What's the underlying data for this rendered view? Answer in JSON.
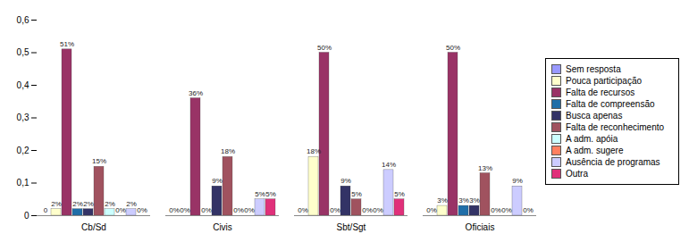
{
  "chart_data": {
    "type": "bar",
    "categories": [
      "Cb/Sd",
      "Civis",
      "Sbt/Sgt",
      "Oficiais"
    ],
    "ylim": [
      0,
      0.6
    ],
    "yticks": [
      0,
      {
        "value": 0.1,
        "label": "0,1"
      },
      {
        "value": 0.2,
        "label": "0,2"
      },
      {
        "value": 0.3,
        "label": "0,3"
      },
      {
        "value": 0.4,
        "label": "0,4"
      },
      {
        "value": 0.5,
        "label": "0,5"
      },
      {
        "value": 0.6,
        "label": "0,6"
      }
    ],
    "grid": false,
    "legend": "right",
    "data_labels": true,
    "series": [
      {
        "name": "Sem resposta",
        "color": "#9999ff",
        "values": [
          0,
          0,
          0,
          0
        ],
        "value_labels": [
          "0",
          "0%",
          "0%",
          "0%"
        ]
      },
      {
        "name": "Pouca participação",
        "color": "#ffffcc",
        "values": [
          0.02,
          0,
          0.18,
          0.03
        ],
        "value_labels": [
          "2%",
          "0%",
          "18%",
          "3%"
        ]
      },
      {
        "name": "Falta de recursos",
        "color": "#993366",
        "values": [
          0.51,
          0.36,
          0.5,
          0.5
        ],
        "value_labels": [
          "51%",
          "36%",
          "50%",
          "50%"
        ]
      },
      {
        "name": "Falta de compreensão",
        "color": "#1f6ea8",
        "values": [
          0.02,
          0,
          0,
          0.03
        ],
        "value_labels": [
          "2%",
          "0%",
          "0%",
          "3%"
        ]
      },
      {
        "name": "Busca apenas",
        "color": "#333366",
        "values": [
          0.02,
          0.09,
          0.09,
          0.03
        ],
        "value_labels": [
          "2%",
          "9%",
          "9%",
          "3%"
        ]
      },
      {
        "name": "Falta de reconhecimento",
        "color": "#a0525f",
        "values": [
          0.15,
          0.18,
          0.05,
          0.13
        ],
        "value_labels": [
          "15%",
          "18%",
          "5%",
          "13%"
        ]
      },
      {
        "name": "A adm. apóia",
        "color": "#ccffff",
        "values": [
          0.02,
          0,
          0,
          0
        ],
        "value_labels": [
          "2%",
          "0%",
          "0%",
          "0%"
        ]
      },
      {
        "name": "A adm. sugere",
        "color": "#ff8060",
        "values": [
          0,
          0,
          0,
          0
        ],
        "value_labels": [
          "0%",
          "0%",
          "0%",
          "0%"
        ]
      },
      {
        "name": "Ausência de programas",
        "color": "#ccccff",
        "values": [
          0.02,
          0.05,
          0.14,
          0.09
        ],
        "value_labels": [
          "2%",
          "5%",
          "14%",
          "9%"
        ]
      },
      {
        "name": "Outra",
        "color": "#e0307a",
        "values": [
          0,
          0.05,
          0.05,
          0
        ],
        "value_labels": [
          "0%",
          "5%",
          "5%",
          "0%"
        ]
      }
    ]
  }
}
